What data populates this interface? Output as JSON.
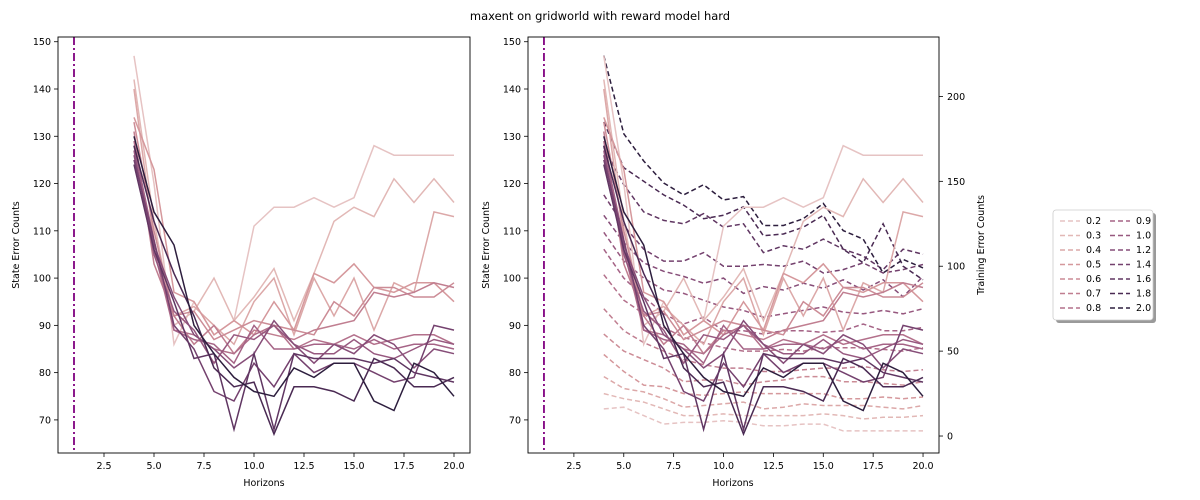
{
  "figure": {
    "suptitle": "maxent on gridworld with reward model hard"
  },
  "legend": {
    "entries": [
      {
        "label": "0.2",
        "color": "#e6c3c3"
      },
      {
        "label": "0.3",
        "color": "#e2b8b6"
      },
      {
        "label": "0.4",
        "color": "#dca8a8"
      },
      {
        "label": "0.5",
        "color": "#d5989c"
      },
      {
        "label": "0.6",
        "color": "#cc8c96"
      },
      {
        "label": "0.7",
        "color": "#c07e90"
      },
      {
        "label": "0.8",
        "color": "#b3708b"
      },
      {
        "label": "0.9",
        "color": "#a56386"
      },
      {
        "label": "1.0",
        "color": "#97587f"
      },
      {
        "label": "1.2",
        "color": "#864d78"
      },
      {
        "label": "1.4",
        "color": "#74416e"
      },
      {
        "label": "1.6",
        "color": "#603662"
      },
      {
        "label": "1.8",
        "color": "#4a2a53"
      },
      {
        "label": "2.0",
        "color": "#2d1e3e"
      }
    ]
  },
  "chart_data": [
    {
      "type": "line",
      "title": "",
      "xlabel": "Horizons",
      "ylabel": "State Error Counts",
      "xlim": [
        0.2,
        20.8
      ],
      "ylim": [
        63,
        151
      ],
      "xticks": [
        2.5,
        5.0,
        7.5,
        10.0,
        12.5,
        15.0,
        17.5,
        20.0
      ],
      "xtick_labels": [
        "2.5",
        "5.0",
        "7.5",
        "10.0",
        "12.5",
        "15.0",
        "17.5",
        "20.0"
      ],
      "yticks": [
        70,
        80,
        90,
        100,
        110,
        120,
        130,
        140,
        150
      ],
      "ytick_labels": [
        "70",
        "80",
        "90",
        "100",
        "110",
        "120",
        "130",
        "140",
        "150"
      ],
      "vline": {
        "x": 1,
        "color": "#800080",
        "style": "dashdot"
      },
      "x": [
        4,
        5,
        6,
        7,
        8,
        9,
        10,
        11,
        12,
        13,
        14,
        15,
        16,
        17,
        18,
        19,
        20
      ],
      "series": [
        {
          "name": "0.2",
          "color": "#e6c3c3",
          "style": "solid",
          "values": [
            147,
            120,
            86,
            95,
            88,
            91,
            111,
            115,
            115,
            117,
            115,
            117,
            128,
            126,
            126,
            126,
            126
          ]
        },
        {
          "name": "0.3",
          "color": "#e2b8b6",
          "style": "solid",
          "values": [
            142,
            112,
            90,
            93,
            100,
            91,
            96,
            102,
            91,
            101,
            112,
            115,
            113,
            121,
            116,
            121,
            116
          ]
        },
        {
          "name": "0.4",
          "color": "#dca8a8",
          "style": "solid",
          "values": [
            140,
            108,
            92,
            94,
            90,
            86,
            95,
            100,
            88,
            100,
            92,
            100,
            89,
            99,
            97,
            114,
            113
          ]
        },
        {
          "name": "0.5",
          "color": "#d5989c",
          "style": "solid",
          "values": [
            134,
            123,
            97,
            95,
            88,
            91,
            88,
            95,
            89,
            101,
            99,
            103,
            98,
            97,
            99,
            99,
            95
          ]
        },
        {
          "name": "0.6",
          "color": "#cc8c96",
          "style": "solid",
          "values": [
            133,
            110,
            92,
            93,
            87,
            89,
            91,
            90,
            89,
            88,
            95,
            92,
            98,
            98,
            96,
            96,
            99
          ]
        },
        {
          "name": "0.7",
          "color": "#c07e90",
          "style": "solid",
          "values": [
            131,
            103,
            92,
            86,
            90,
            84,
            89,
            88,
            87,
            89,
            90,
            91,
            97,
            96,
            97,
            99,
            98
          ]
        },
        {
          "name": "0.8",
          "color": "#b3708b",
          "style": "solid",
          "values": [
            129,
            106,
            89,
            88,
            85,
            84,
            88,
            90,
            85,
            87,
            86,
            88,
            86,
            87,
            88,
            88,
            86
          ]
        },
        {
          "name": "0.9",
          "color": "#a56386",
          "style": "solid",
          "values": [
            128,
            108,
            89,
            87,
            86,
            82,
            90,
            85,
            85,
            86,
            86,
            85,
            87,
            85,
            86,
            86,
            85
          ]
        },
        {
          "name": "1.0",
          "color": "#97587f",
          "style": "solid",
          "values": [
            127,
            105,
            93,
            89,
            82,
            88,
            87,
            90,
            86,
            84,
            84,
            87,
            84,
            83,
            85,
            87,
            86
          ]
        },
        {
          "name": "1.2",
          "color": "#864d78",
          "style": "solid",
          "values": [
            126,
            107,
            96,
            88,
            85,
            81,
            84,
            91,
            86,
            82,
            86,
            84,
            88,
            86,
            81,
            85,
            84
          ]
        },
        {
          "name": "1.4",
          "color": "#74416e",
          "style": "solid",
          "values": [
            125,
            108,
            90,
            85,
            76,
            74,
            82,
            77,
            84,
            80,
            82,
            82,
            80,
            78,
            79,
            90,
            89
          ]
        },
        {
          "name": "1.6",
          "color": "#603662",
          "style": "solid",
          "values": [
            124,
            106,
            95,
            83,
            84,
            68,
            84,
            68,
            84,
            83,
            83,
            83,
            82,
            83,
            80,
            79,
            78
          ]
        },
        {
          "name": "1.8",
          "color": "#4a2a53",
          "style": "solid",
          "values": [
            128,
            112,
            101,
            92,
            81,
            77,
            78,
            67,
            77,
            77,
            76,
            74,
            83,
            81,
            77,
            77,
            79
          ]
        },
        {
          "name": "2.0",
          "color": "#2d1e3e",
          "style": "solid",
          "values": [
            130,
            114,
            107,
            90,
            84,
            79,
            76,
            75,
            81,
            79,
            82,
            82,
            74,
            72,
            82,
            80,
            75
          ]
        }
      ]
    },
    {
      "type": "line",
      "title": "",
      "xlabel": "Horizons",
      "ylabel": "State Error Counts",
      "ylabel_right": "Training Error Counts",
      "xlim": [
        0.2,
        20.8
      ],
      "ylim": [
        63,
        151
      ],
      "ylim_right": [
        -10,
        235
      ],
      "xticks": [
        2.5,
        5.0,
        7.5,
        10.0,
        12.5,
        15.0,
        17.5,
        20.0
      ],
      "xtick_labels": [
        "2.5",
        "5.0",
        "7.5",
        "10.0",
        "12.5",
        "15.0",
        "17.5",
        "20.0"
      ],
      "yticks": [
        70,
        80,
        90,
        100,
        110,
        120,
        130,
        140,
        150
      ],
      "ytick_labels": [
        "70",
        "80",
        "90",
        "100",
        "110",
        "120",
        "130",
        "140",
        "150"
      ],
      "yticks_right": [
        0,
        50,
        100,
        150,
        200
      ],
      "ytick_labels_right": [
        "0",
        "50",
        "100",
        "150",
        "200"
      ],
      "vline": {
        "x": 1,
        "color": "#800080",
        "style": "dashdot"
      },
      "x": [
        4,
        5,
        6,
        7,
        8,
        9,
        10,
        11,
        12,
        13,
        14,
        15,
        16,
        17,
        18,
        19,
        20
      ],
      "series_right": [
        {
          "name": "0.2",
          "color": "#e6c3c3",
          "style": "dashed",
          "values": [
            16,
            17,
            12,
            7,
            8,
            8,
            9,
            8,
            6,
            6,
            7,
            7,
            3,
            3,
            3,
            3,
            3
          ]
        },
        {
          "name": "0.3",
          "color": "#e2b8b6",
          "style": "dashed",
          "values": [
            25,
            22,
            20,
            16,
            12,
            12,
            13,
            12,
            12,
            12,
            12,
            13,
            12,
            10,
            11,
            11,
            12
          ]
        },
        {
          "name": "0.4",
          "color": "#dca8a8",
          "style": "dashed",
          "values": [
            35,
            28,
            26,
            22,
            17,
            18,
            19,
            20,
            16,
            17,
            19,
            18,
            18,
            18,
            17,
            16,
            18
          ]
        },
        {
          "name": "0.5",
          "color": "#d5989c",
          "style": "dashed",
          "values": [
            48,
            38,
            30,
            29,
            25,
            24,
            25,
            26,
            25,
            25,
            25,
            25,
            22,
            22,
            23,
            22,
            23
          ]
        },
        {
          "name": "0.6",
          "color": "#cc8c96",
          "style": "dashed",
          "values": [
            60,
            50,
            45,
            40,
            32,
            33,
            33,
            30,
            32,
            33,
            35,
            35,
            32,
            32,
            31,
            30,
            32
          ]
        },
        {
          "name": "0.7",
          "color": "#c07e90",
          "style": "dashed",
          "values": [
            75,
            62,
            55,
            50,
            45,
            42,
            40,
            40,
            38,
            38,
            39,
            40,
            40,
            41,
            39,
            38,
            39
          ]
        },
        {
          "name": "0.8",
          "color": "#b3708b",
          "style": "dashed",
          "values": [
            95,
            80,
            72,
            64,
            58,
            55,
            52,
            50,
            50,
            51,
            50,
            52,
            52,
            52,
            51,
            50,
            52
          ]
        },
        {
          "name": "0.9",
          "color": "#a56386",
          "style": "dashed",
          "values": [
            110,
            93,
            82,
            72,
            66,
            70,
            62,
            62,
            60,
            62,
            62,
            61,
            62,
            66,
            62,
            62,
            64
          ]
        },
        {
          "name": "1.0",
          "color": "#97587f",
          "style": "dashed",
          "values": [
            120,
            103,
            93,
            86,
            84,
            80,
            76,
            74,
            70,
            72,
            74,
            76,
            73,
            72,
            74,
            72,
            75
          ]
        },
        {
          "name": "1.2",
          "color": "#864d78",
          "style": "dashed",
          "values": [
            130,
            114,
            102,
            97,
            94,
            90,
            93,
            84,
            88,
            86,
            90,
            87,
            92,
            86,
            92,
            82,
            94
          ]
        },
        {
          "name": "1.4",
          "color": "#74416e",
          "style": "dashed",
          "values": [
            142,
            124,
            110,
            103,
            103,
            108,
            100,
            100,
            101,
            100,
            103,
            96,
            98,
            102,
            96,
            98,
            101
          ]
        },
        {
          "name": "1.6",
          "color": "#603662",
          "style": "dashed",
          "values": [
            170,
            148,
            132,
            127,
            125,
            131,
            123,
            125,
            108,
            112,
            110,
            116,
            110,
            106,
            98,
            110,
            107
          ]
        },
        {
          "name": "1.8",
          "color": "#4a2a53",
          "style": "dashed",
          "values": [
            185,
            158,
            150,
            142,
            136,
            128,
            130,
            135,
            118,
            119,
            123,
            130,
            110,
            102,
            125,
            100,
            92
          ]
        },
        {
          "name": "2.0",
          "color": "#2d1e3e",
          "style": "dashed",
          "values": [
            224,
            178,
            162,
            149,
            142,
            148,
            139,
            141,
            124,
            124,
            128,
            137,
            121,
            116,
            96,
            104,
            99
          ]
        }
      ],
      "series": "same_as_left"
    }
  ]
}
